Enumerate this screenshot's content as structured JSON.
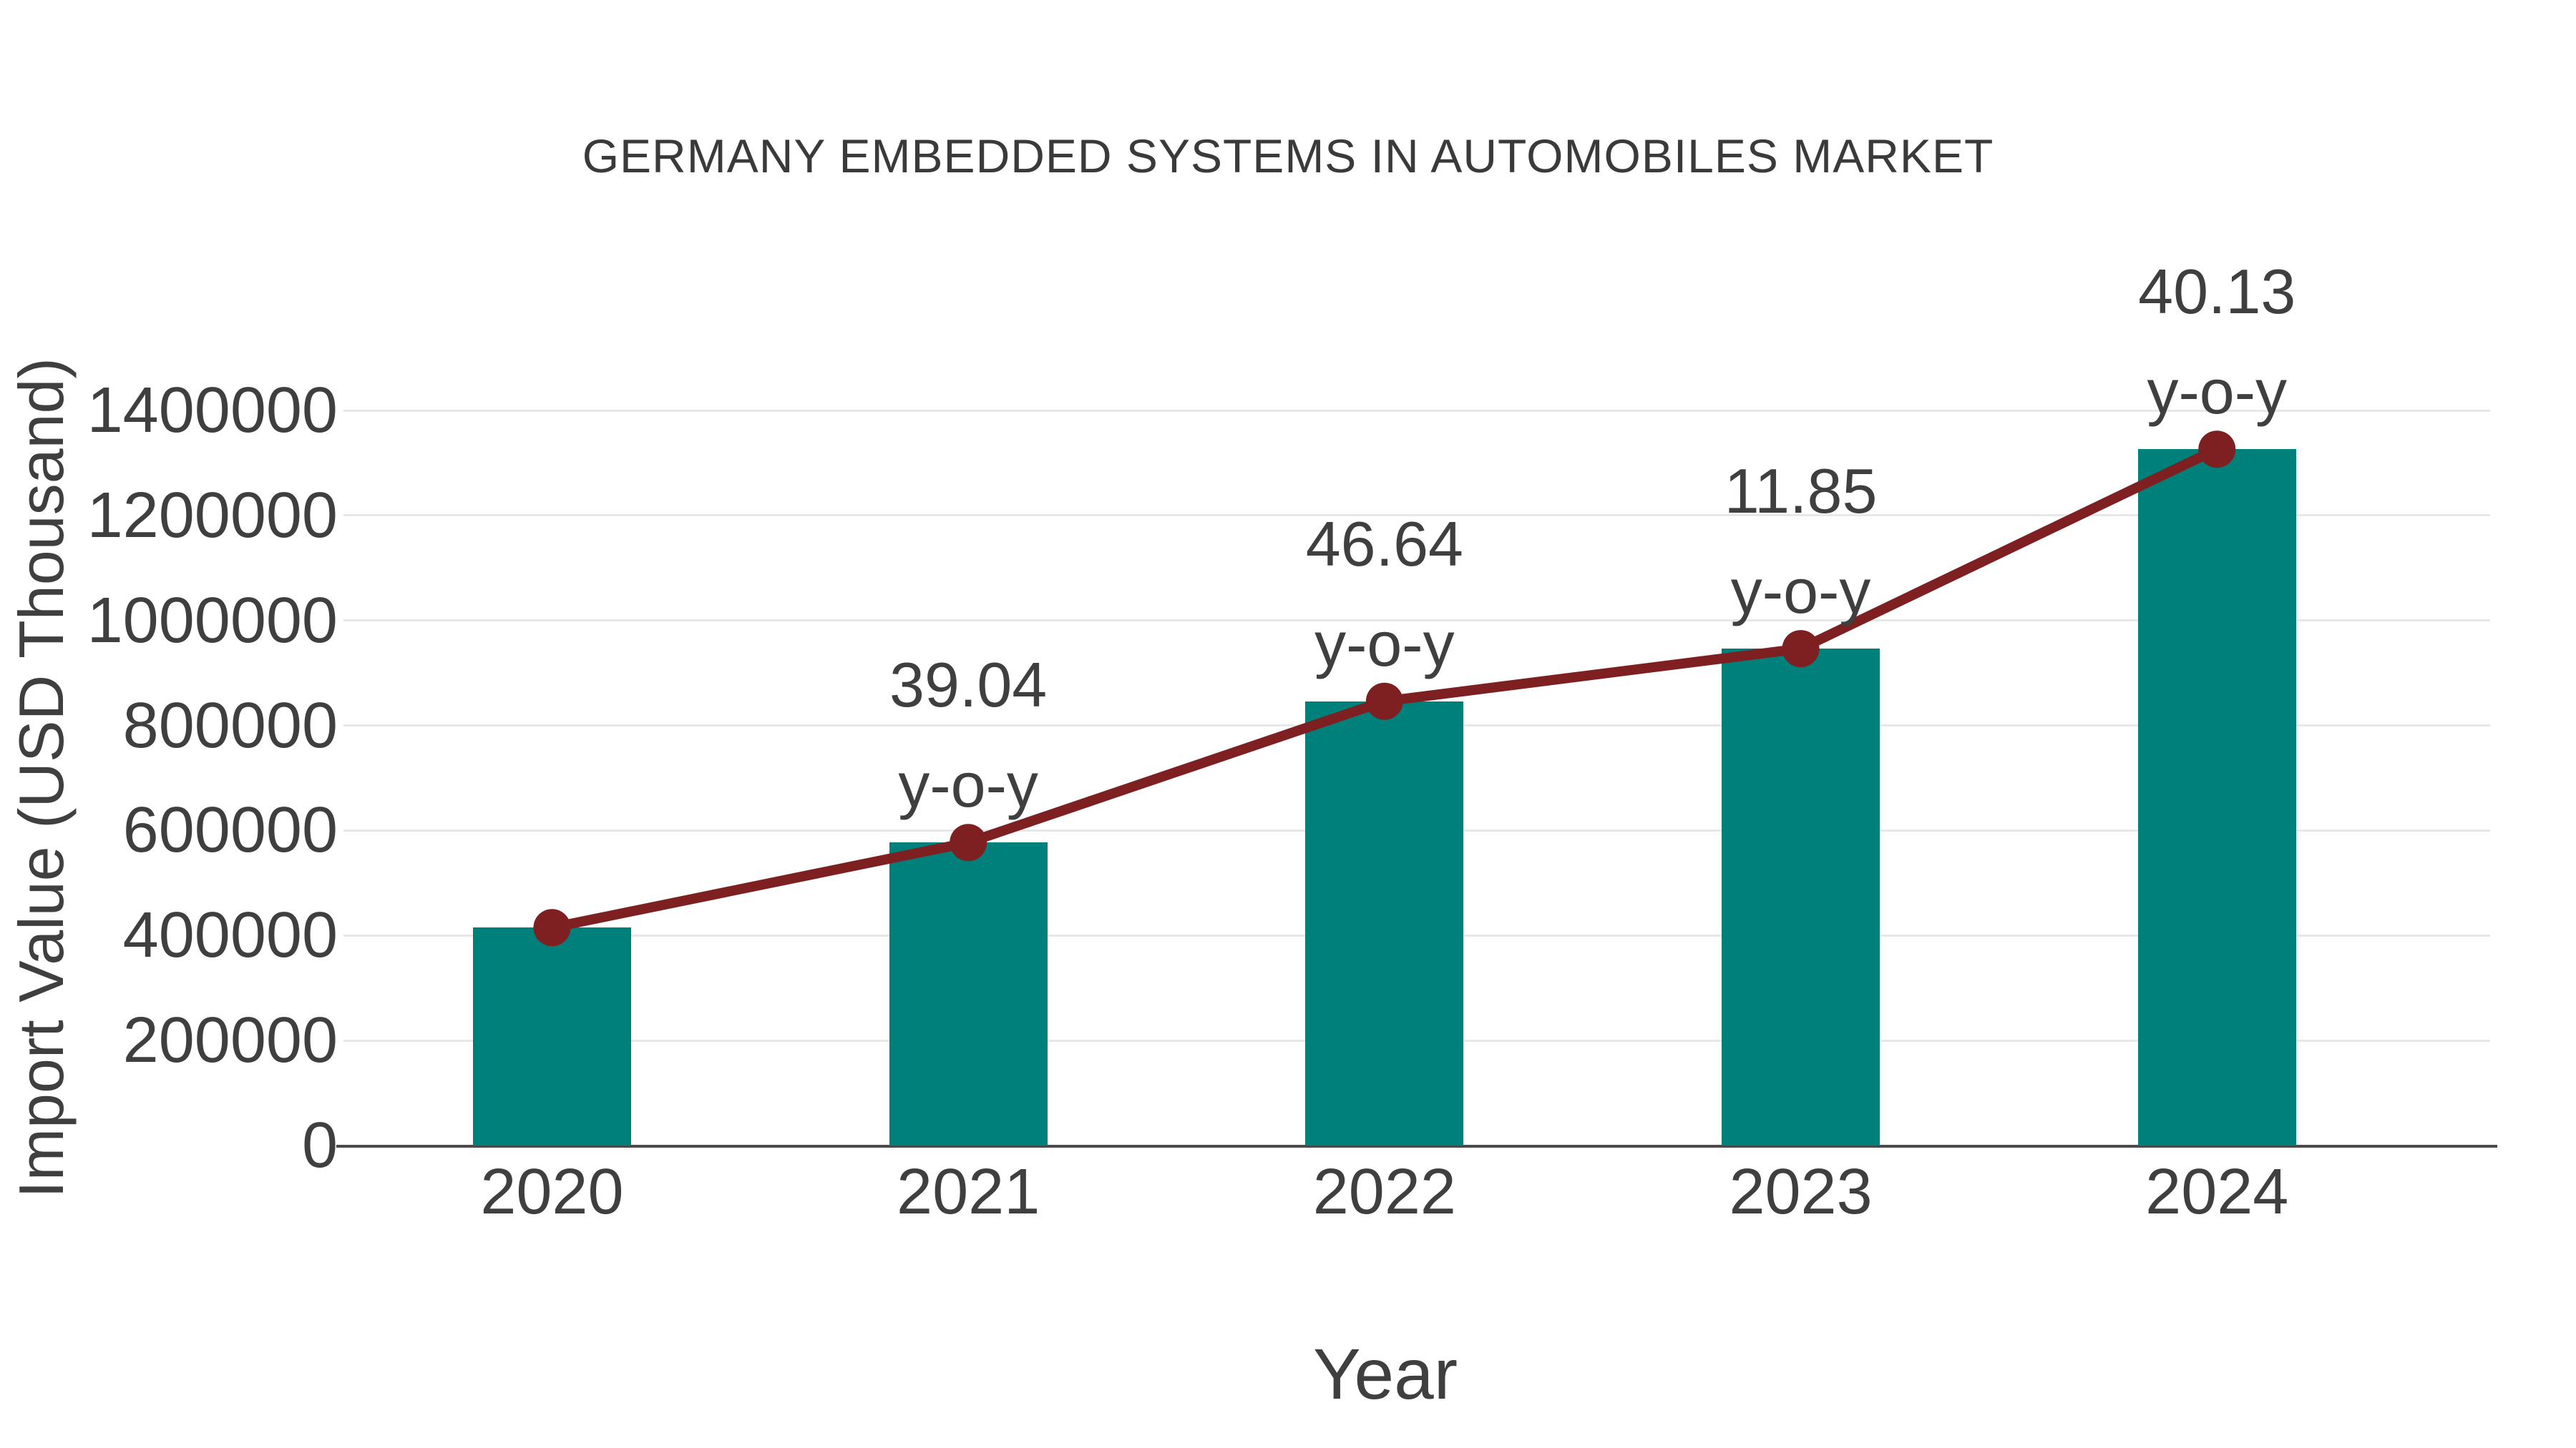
{
  "title": "GERMANY EMBEDDED SYSTEMS IN AUTOMOBILES MARKET",
  "colors": {
    "bar": "#00807B",
    "line": "#7E2022",
    "marker": "#7E2022",
    "grid": "#E8E8E8",
    "axis": "#4A4A4A",
    "text": "#3F3F3F",
    "title_text": "#3A3A3A",
    "background": "#FFFFFF"
  },
  "chart_data": {
    "type": "bar",
    "overlay": "line",
    "title": "GERMANY EMBEDDED SYSTEMS IN AUTOMOBILES MARKET",
    "xlabel": "Year",
    "ylabel": "Import Value (USD Thousand)",
    "categories": [
      "2020",
      "2021",
      "2022",
      "2023",
      "2024"
    ],
    "series": [
      {
        "name": "Import Value (USD Thousand)",
        "type": "bar",
        "values": [
          415000,
          577016,
          846136,
          946403,
          1326195
        ]
      },
      {
        "name": "y-o-y trend",
        "type": "line",
        "values": [
          415000,
          577016,
          846136,
          946403,
          1326195
        ]
      }
    ],
    "annotations": [
      {
        "category": "2021",
        "line1": "39.04",
        "line2": "y-o-y",
        "yoy_percent": 39.04
      },
      {
        "category": "2022",
        "line1": "46.64",
        "line2": "y-o-y",
        "yoy_percent": 46.64
      },
      {
        "category": "2023",
        "line1": "11.85",
        "line2": "y-o-y",
        "yoy_percent": 11.85
      },
      {
        "category": "2024",
        "line1": "40.13",
        "line2": "y-o-y",
        "yoy_percent": 40.13
      }
    ],
    "ylim": [
      0,
      1400000
    ],
    "ytick_step": 200000,
    "yticks": [
      0,
      200000,
      400000,
      600000,
      800000,
      1000000,
      1200000,
      1400000
    ],
    "grid": true,
    "legend_position": "none"
  }
}
